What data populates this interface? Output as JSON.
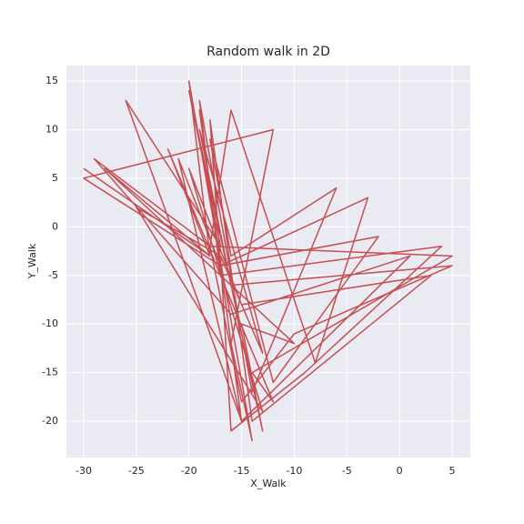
{
  "chart_data": {
    "type": "line",
    "title": "Random walk in 2D",
    "xlabel": "X_Walk",
    "ylabel": "Y_Walk",
    "x": [
      -30,
      -18,
      -20,
      -14,
      -16,
      -12,
      -30,
      -17,
      -19,
      -15,
      -26,
      -17,
      -20,
      -13,
      -15,
      -10,
      -28,
      -18,
      -22,
      -12,
      -14,
      5,
      -18,
      -16,
      -8,
      -3,
      -17,
      -18,
      -14,
      3,
      -15,
      -20,
      -13,
      -25,
      -17,
      -16,
      -9,
      4,
      -17,
      -19,
      -14,
      -6,
      -16,
      -18,
      -12,
      -2,
      -17,
      -21,
      -15,
      1,
      -16,
      -29,
      -18,
      -15,
      -10,
      5,
      -16,
      -19,
      -13,
      -17
    ],
    "series": [
      {
        "color": "#c44e52",
        "values": [
          6,
          -3,
          15,
          -22,
          -12,
          10,
          5,
          -4,
          12,
          -20,
          13,
          -2,
          14,
          -21,
          -10,
          -12,
          6,
          -3,
          8,
          -18,
          -15,
          -3,
          -2,
          12,
          -14,
          3,
          -4,
          11,
          -20,
          -5,
          -8,
          6,
          -19,
          2,
          -3,
          -21,
          -15,
          -2,
          -5,
          13,
          -17,
          4,
          -3,
          9,
          -16,
          -1,
          -4,
          7,
          -20,
          -3,
          -9,
          7,
          -2,
          -18,
          -11,
          -4,
          -6,
          10,
          -13,
          -3
        ]
      }
    ],
    "xlim": [
      -31.64,
      6.73
    ],
    "ylim": [
      -23.74,
      16.6
    ],
    "xticks": [
      -30,
      -25,
      -20,
      -15,
      -10,
      -5,
      0,
      5
    ],
    "yticks": [
      -20,
      -15,
      -10,
      -5,
      0,
      5,
      10,
      15
    ],
    "grid": true,
    "background": "#eaeaf2"
  }
}
